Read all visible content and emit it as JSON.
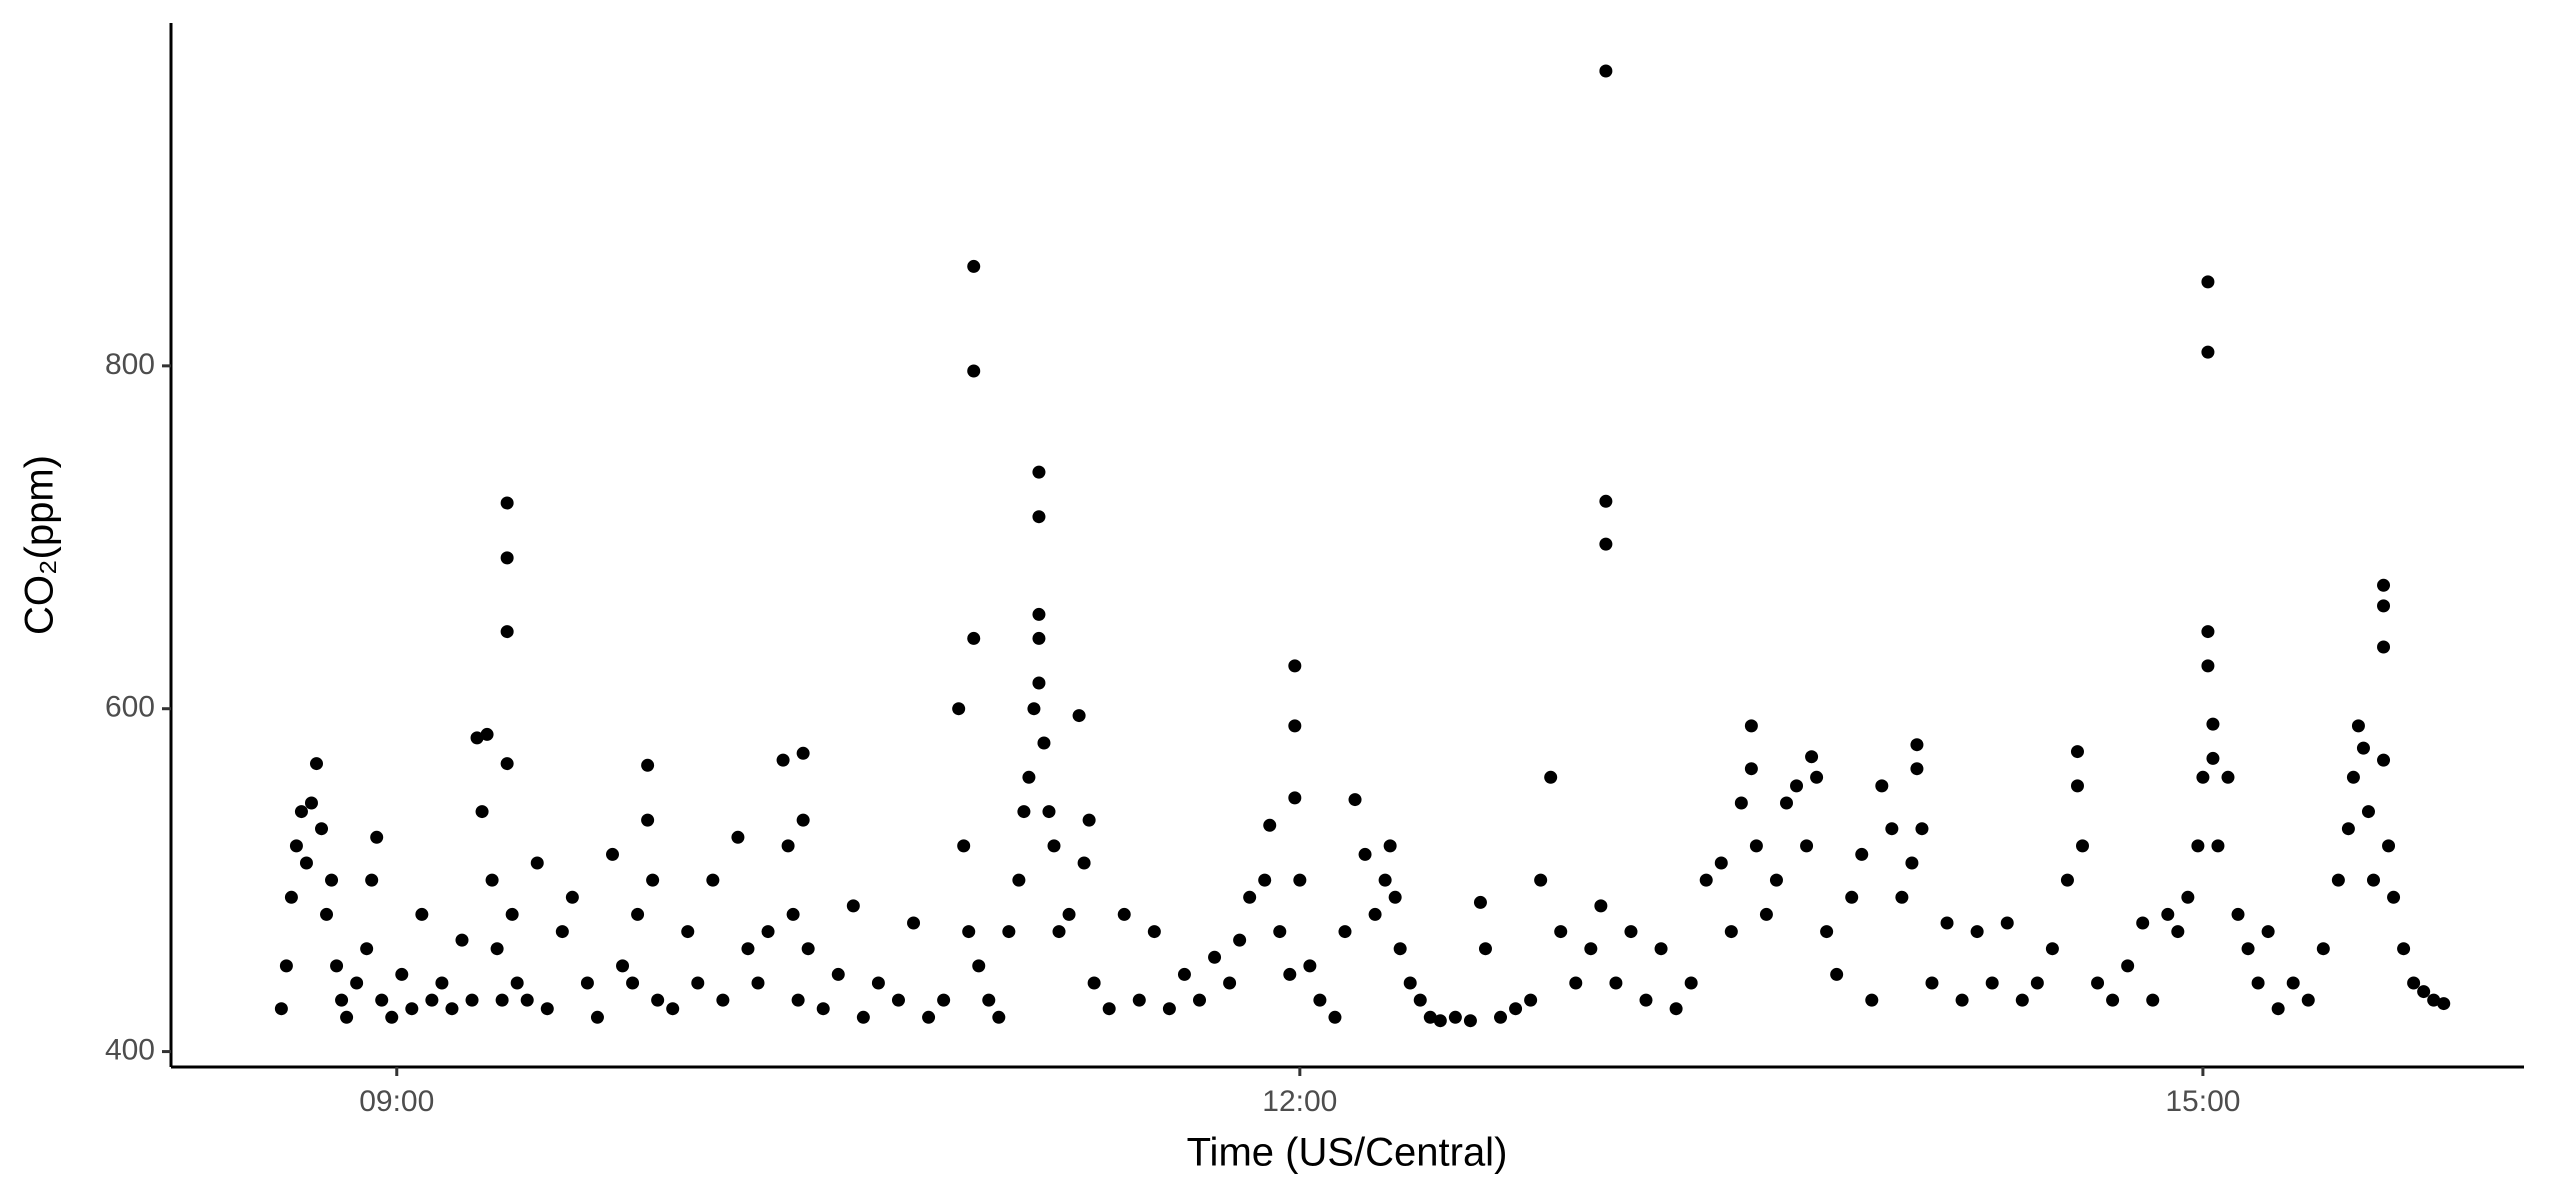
{
  "chart_data": {
    "type": "scatter",
    "xlabel": "Time (US/Central)",
    "ylabel": "CO₂(ppm)",
    "xlim": [
      "08:15",
      "16:04"
    ],
    "xticks": [
      "09:00",
      "12:00",
      "15:00"
    ],
    "ylim": [
      391,
      1000
    ],
    "yticks": [
      400,
      600,
      800
    ],
    "grid": false,
    "series": [
      {
        "color": "#000000",
        "x": [
          "08:37",
          "08:38",
          "08:39",
          "08:40",
          "08:41",
          "08:42",
          "08:43",
          "08:44",
          "08:45",
          "08:46",
          "08:47",
          "08:48",
          "08:49",
          "08:50",
          "08:52",
          "08:54",
          "08:55",
          "08:56",
          "08:57",
          "08:59",
          "09:01",
          "09:03",
          "09:05",
          "09:07",
          "09:09",
          "09:11",
          "09:13",
          "09:15",
          "09:16",
          "09:17",
          "09:18",
          "09:19",
          "09:20",
          "09:21",
          "09:22",
          "09:22",
          "09:22",
          "09:22",
          "09:23",
          "09:24",
          "09:26",
          "09:28",
          "09:30",
          "09:33",
          "09:35",
          "09:38",
          "09:40",
          "09:43",
          "09:45",
          "09:47",
          "09:48",
          "09:50",
          "09:50",
          "09:51",
          "09:52",
          "09:55",
          "09:58",
          "10:00",
          "10:03",
          "10:05",
          "10:08",
          "10:10",
          "10:12",
          "10:14",
          "10:17",
          "10:18",
          "10:19",
          "10:20",
          "10:21",
          "10:21",
          "10:22",
          "10:25",
          "10:28",
          "10:31",
          "10:33",
          "10:36",
          "10:40",
          "10:43",
          "10:46",
          "10:49",
          "10:52",
          "10:53",
          "10:54",
          "10:55",
          "10:55",
          "10:55",
          "10:56",
          "10:58",
          "11:00",
          "11:02",
          "11:04",
          "11:05",
          "11:06",
          "11:07",
          "11:08",
          "11:08",
          "11:08",
          "11:08",
          "11:08",
          "11:09",
          "11:10",
          "11:11",
          "11:12",
          "11:14",
          "11:16",
          "11:17",
          "11:18",
          "11:19",
          "11:22",
          "11:25",
          "11:28",
          "11:31",
          "11:34",
          "11:37",
          "11:40",
          "11:43",
          "11:46",
          "11:48",
          "11:50",
          "11:53",
          "11:54",
          "11:56",
          "11:58",
          "11:59",
          "11:59",
          "11:59",
          "12:00",
          "12:02",
          "12:04",
          "12:07",
          "12:09",
          "12:11",
          "12:13",
          "12:15",
          "12:17",
          "12:18",
          "12:19",
          "12:20",
          "12:22",
          "12:24",
          "12:26",
          "12:28",
          "12:31",
          "12:34",
          "12:36",
          "12:37",
          "12:40",
          "12:43",
          "12:46",
          "12:48",
          "12:50",
          "12:52",
          "12:55",
          "12:58",
          "13:00",
          "13:01",
          "13:01",
          "13:01",
          "13:03",
          "13:06",
          "13:09",
          "13:12",
          "13:15",
          "13:18",
          "13:21",
          "13:24",
          "13:26",
          "13:28",
          "13:30",
          "13:30",
          "13:31",
          "13:33",
          "13:35",
          "13:37",
          "13:39",
          "13:41",
          "13:42",
          "13:43",
          "13:45",
          "13:47",
          "13:50",
          "13:52",
          "13:54",
          "13:56",
          "13:58",
          "14:00",
          "14:02",
          "14:03",
          "14:03",
          "14:04",
          "14:06",
          "14:09",
          "14:12",
          "14:15",
          "14:18",
          "14:21",
          "14:24",
          "14:27",
          "14:30",
          "14:33",
          "14:35",
          "14:35",
          "14:36",
          "14:39",
          "14:42",
          "14:45",
          "14:48",
          "14:50",
          "14:53",
          "14:55",
          "14:57",
          "14:59",
          "15:00",
          "15:01",
          "15:01",
          "15:01",
          "15:01",
          "15:02",
          "15:02",
          "15:03",
          "15:05",
          "15:07",
          "15:09",
          "15:11",
          "15:13",
          "15:15",
          "15:18",
          "15:21",
          "15:24",
          "15:27",
          "15:29",
          "15:30",
          "15:31",
          "15:32",
          "15:33",
          "15:34",
          "15:36",
          "15:36",
          "15:36",
          "15:36",
          "15:37",
          "15:38",
          "15:40",
          "15:42",
          "15:44",
          "15:46",
          "15:48"
        ],
        "values": [
          425,
          450,
          490,
          520,
          540,
          510,
          545,
          568,
          530,
          480,
          500,
          450,
          430,
          420,
          440,
          460,
          500,
          525,
          430,
          420,
          445,
          425,
          480,
          430,
          440,
          425,
          465,
          430,
          583,
          540,
          585,
          500,
          460,
          430,
          720,
          688,
          645,
          568,
          480,
          440,
          430,
          510,
          425,
          470,
          490,
          440,
          420,
          515,
          450,
          440,
          480,
          567,
          535,
          500,
          430,
          425,
          470,
          440,
          500,
          430,
          525,
          460,
          440,
          470,
          570,
          520,
          480,
          430,
          574,
          535,
          460,
          425,
          445,
          485,
          420,
          440,
          430,
          475,
          420,
          430,
          600,
          520,
          470,
          858,
          797,
          641,
          450,
          430,
          420,
          470,
          500,
          540,
          560,
          600,
          738,
          712,
          655,
          641,
          615,
          580,
          540,
          520,
          470,
          480,
          596,
          510,
          535,
          440,
          425,
          480,
          430,
          470,
          425,
          445,
          430,
          455,
          440,
          465,
          490,
          500,
          532,
          470,
          445,
          625,
          590,
          548,
          500,
          450,
          430,
          420,
          470,
          547,
          515,
          480,
          500,
          520,
          490,
          460,
          440,
          430,
          420,
          418,
          420,
          418,
          487,
          460,
          420,
          425,
          430,
          500,
          560,
          470,
          440,
          460,
          485,
          972,
          721,
          696,
          440,
          470,
          430,
          460,
          425,
          440,
          500,
          510,
          470,
          545,
          590,
          565,
          520,
          480,
          500,
          545,
          555,
          520,
          572,
          560,
          470,
          445,
          490,
          515,
          430,
          555,
          530,
          490,
          510,
          579,
          565,
          530,
          440,
          475,
          430,
          470,
          440,
          475,
          430,
          440,
          460,
          500,
          575,
          555,
          520,
          440,
          430,
          450,
          475,
          430,
          480,
          470,
          490,
          520,
          560,
          849,
          808,
          645,
          625,
          591,
          571,
          520,
          560,
          480,
          460,
          440,
          470,
          425,
          440,
          430,
          460,
          500,
          530,
          560,
          590,
          577,
          540,
          500,
          672,
          660,
          636,
          570,
          520,
          490,
          460,
          440,
          435,
          430,
          428
        ]
      }
    ]
  }
}
